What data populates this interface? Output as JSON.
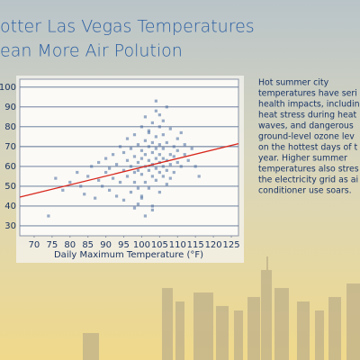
{
  "chart_data": {
    "type": "scatter",
    "title_lines": [
      "otter Las Vegas Temperatures",
      "ean More Air Polution"
    ],
    "x_label": "Daily Maximum Temperature (°F)",
    "xlim": [
      66,
      127
    ],
    "ylim": [
      25,
      104
    ],
    "xticks": [
      70,
      75,
      80,
      85,
      90,
      95,
      100,
      105,
      110,
      115,
      120,
      125
    ],
    "yticks": [
      30,
      40,
      50,
      60,
      70,
      80,
      90,
      100
    ],
    "grid": true,
    "points": {
      "color": "#46679c",
      "x": [
        74,
        76,
        78,
        80,
        82,
        83,
        84,
        85,
        86,
        87,
        88,
        88,
        89,
        90,
        90,
        91,
        91,
        92,
        92,
        93,
        93,
        94,
        94,
        95,
        95,
        95,
        96,
        96,
        96,
        97,
        97,
        97,
        98,
        98,
        98,
        98,
        99,
        99,
        99,
        99,
        100,
        100,
        100,
        100,
        100,
        101,
        101,
        101,
        101,
        101,
        102,
        102,
        102,
        102,
        102,
        103,
        103,
        103,
        103,
        103,
        103,
        104,
        104,
        104,
        104,
        104,
        104,
        105,
        105,
        105,
        105,
        105,
        105,
        106,
        106,
        106,
        106,
        106,
        107,
        107,
        107,
        107,
        108,
        108,
        108,
        108,
        109,
        109,
        109,
        110,
        110,
        110,
        111,
        111,
        112,
        112,
        113,
        114,
        115,
        116,
        104,
        103,
        105,
        102,
        100,
        106,
        107,
        101,
        99,
        98
      ],
      "values": [
        35,
        54,
        48,
        52,
        57,
        50,
        46,
        55,
        60,
        44,
        53,
        62,
        50,
        57,
        64,
        48,
        59,
        66,
        54,
        45,
        61,
        70,
        52,
        58,
        67,
        43,
        63,
        74,
        55,
        60,
        47,
        69,
        57,
        65,
        52,
        76,
        62,
        71,
        49,
        58,
        64,
        80,
        56,
        68,
        44,
        60,
        73,
        52,
        66,
        85,
        58,
        63,
        77,
        49,
        70,
        61,
        67,
        55,
        82,
        72,
        40,
        64,
        59,
        75,
        69,
        53,
        88,
        62,
        57,
        71,
        66,
        80,
        47,
        64,
        60,
        76,
        55,
        69,
        58,
        72,
        63,
        90,
        66,
        61,
        54,
        79,
        65,
        70,
        57,
        62,
        74,
        68,
        60,
        77,
        66,
        71,
        63,
        69,
        60,
        55,
        93,
        38,
        86,
        78,
        45,
        83,
        51,
        35,
        41,
        39
      ]
    },
    "fit_line": {
      "color": "#d8261c",
      "x": [
        66,
        127
      ],
      "values": [
        44.5,
        71.5
      ]
    }
  },
  "side_text": [
    "Hot summer city",
    "temperatures have seri",
    "health impacts, includin",
    "heat stress during heat",
    "waves, and dangerous",
    "ground-level ozone lev",
    "on the hottest days of t",
    "year. Higher summer",
    "temperatures also stres",
    "the electricity grid as ai",
    "conditioner use soars."
  ]
}
